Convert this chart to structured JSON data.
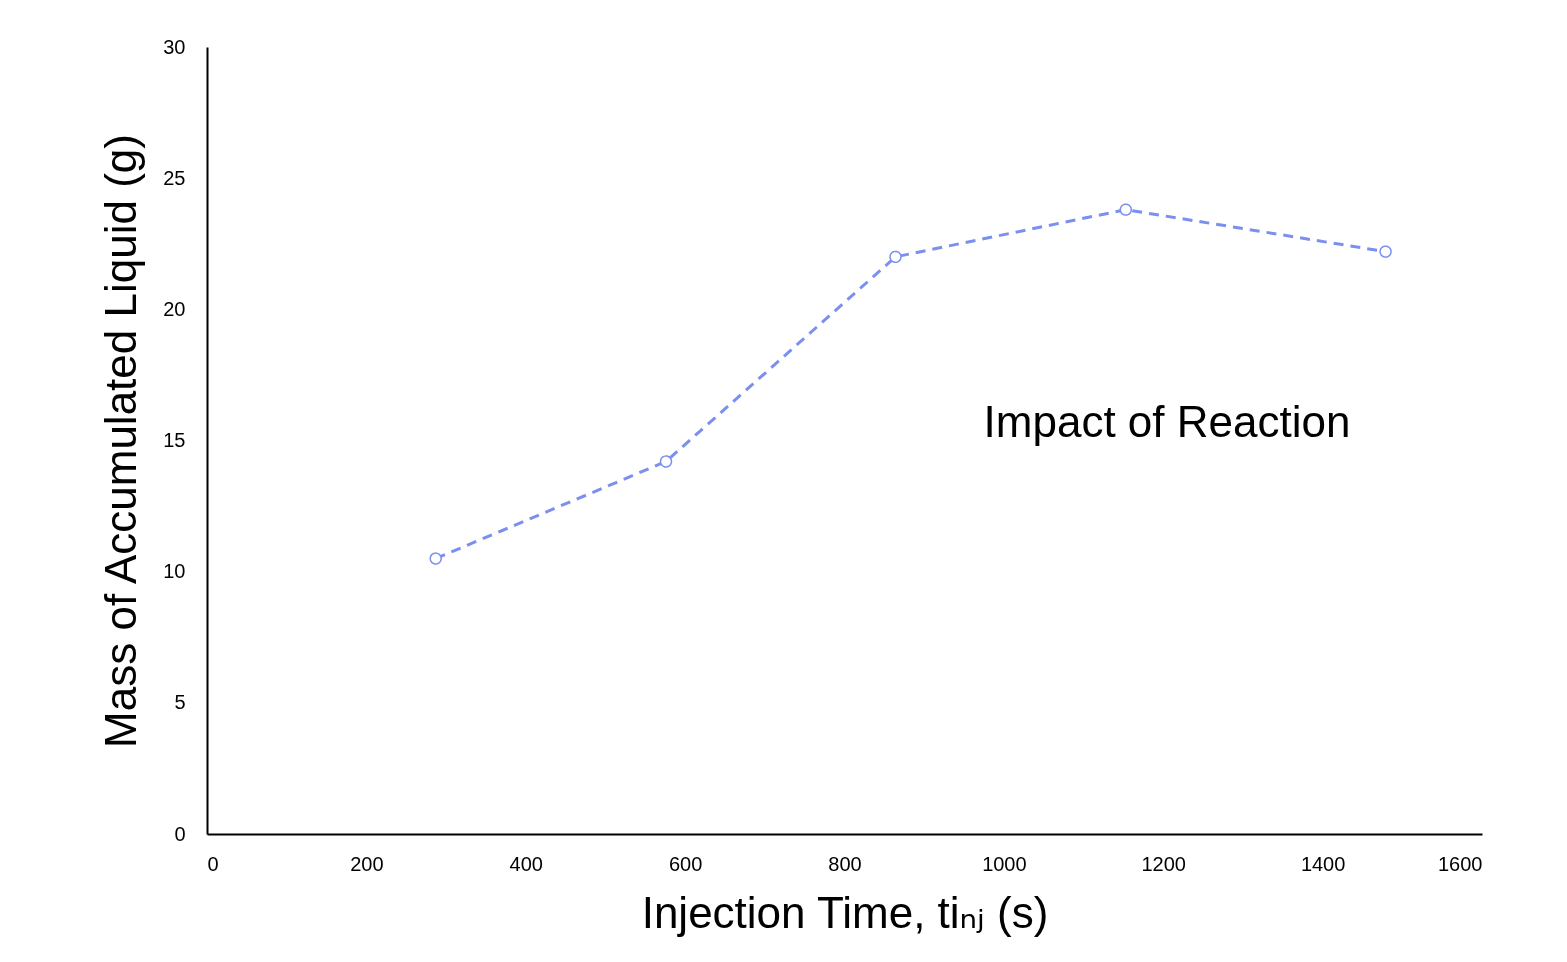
{
  "chart_data": {
    "type": "line",
    "xlabel": "Injection Time, tiₙⱼ (s)",
    "ylabel": "Mass of Accumulated Liquid (g)",
    "annotations": [
      "Impact of Reaction"
    ],
    "x": [
      287,
      576,
      864,
      1153,
      1479
    ],
    "series": [
      {
        "color": "#7b8ff0",
        "values": [
          10.5,
          14.2,
          22.0,
          23.8,
          22.2
        ]
      }
    ],
    "xlim": [
      0,
      1600
    ],
    "xticks": [
      0,
      200,
      400,
      600,
      800,
      1000,
      1200,
      1400,
      1600
    ],
    "ylim": [
      0,
      30
    ],
    "yticks": [
      0,
      5,
      10,
      15,
      20,
      25,
      30
    ],
    "grid": false,
    "marker": "circle",
    "line_style": "dashed"
  }
}
